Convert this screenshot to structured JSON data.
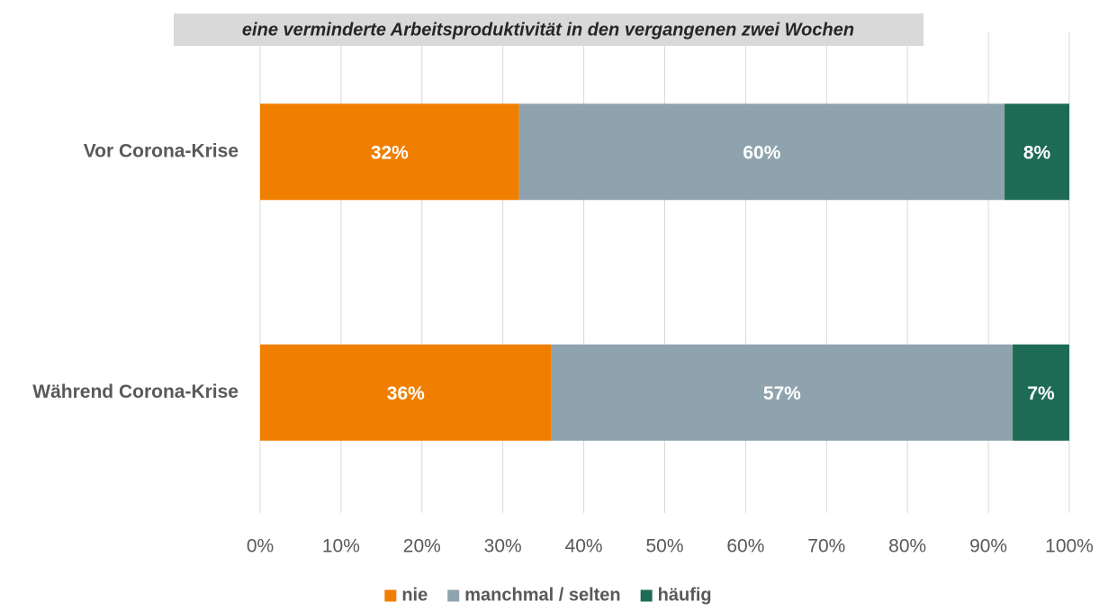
{
  "chart_data": {
    "type": "bar",
    "orientation": "horizontal",
    "stacked": true,
    "title": "eine verminderte Arbeitsproduktivität in den vergangenen zwei Wochen",
    "categories": [
      "Vor Corona-Krise",
      "Während Corona-Krise"
    ],
    "series": [
      {
        "name": "nie",
        "color": "#f07f00",
        "values": [
          32,
          36
        ],
        "value_labels": [
          "32%",
          "36%"
        ]
      },
      {
        "name": "manchmal / selten",
        "color": "#8fa3ae",
        "values": [
          60,
          57
        ],
        "value_labels": [
          "60%",
          "57%"
        ]
      },
      {
        "name": "häufig",
        "color": "#1e6b55",
        "values": [
          8,
          7
        ],
        "value_labels": [
          "8%",
          "7%"
        ]
      }
    ],
    "xlim": [
      0,
      100
    ],
    "xticks": [
      {
        "value": 0,
        "label": "0%"
      },
      {
        "value": 10,
        "label": "10%"
      },
      {
        "value": 20,
        "label": "20%"
      },
      {
        "value": 30,
        "label": "30%"
      },
      {
        "value": 40,
        "label": "40%"
      },
      {
        "value": 50,
        "label": "50%"
      },
      {
        "value": 60,
        "label": "60%"
      },
      {
        "value": 70,
        "label": "70%"
      },
      {
        "value": 80,
        "label": "80%"
      },
      {
        "value": 90,
        "label": "90%"
      },
      {
        "value": 100,
        "label": "100%"
      }
    ],
    "grid": true,
    "legend": "bottom"
  }
}
